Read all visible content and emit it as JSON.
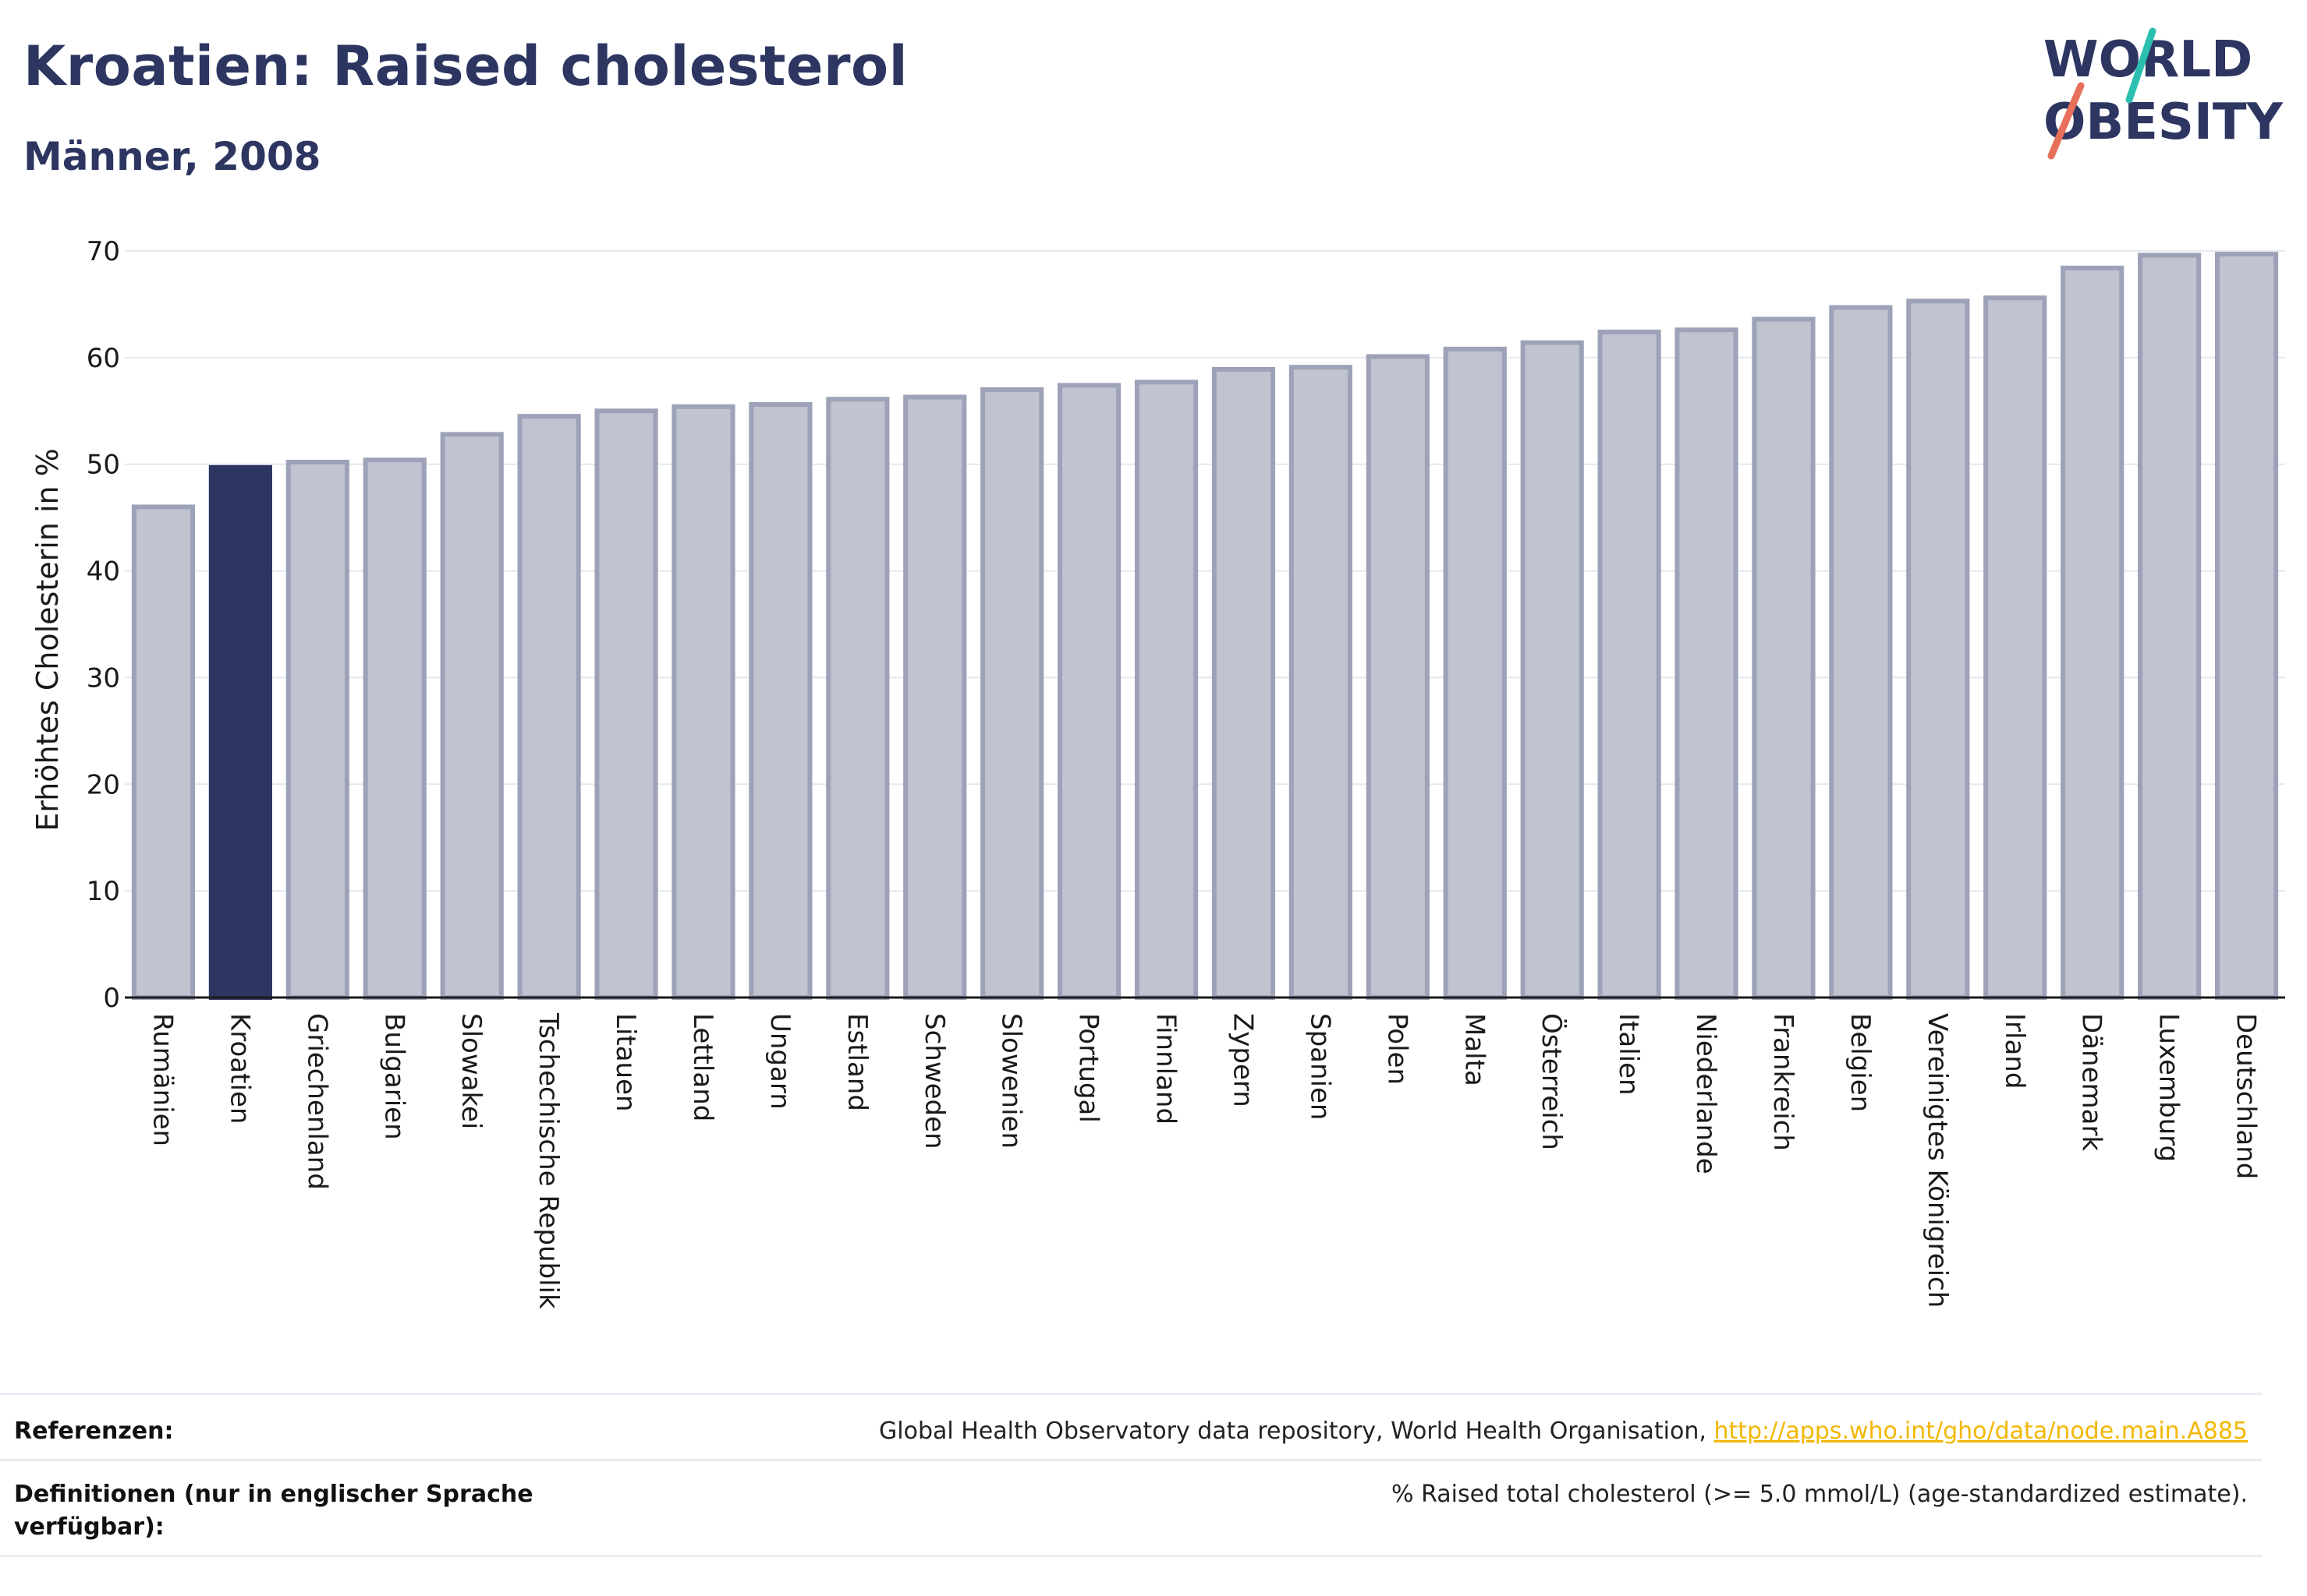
{
  "header": {
    "title": "Kroatien: Raised cholesterol",
    "subtitle": "Männer, 2008"
  },
  "logo": {
    "line1": "WORLD",
    "line2": "OBESITY",
    "accent_colors": [
      "#2bbfb0",
      "#e8705a"
    ],
    "text_color": "#2d3561"
  },
  "chart_data": {
    "type": "bar",
    "ylabel": "Erhöhtes Cholesterin in %",
    "ylim": [
      0,
      70
    ],
    "yticks": [
      0,
      10,
      20,
      30,
      40,
      50,
      60,
      70
    ],
    "grid": true,
    "highlight": "Kroatien",
    "colors": {
      "bar": "#c0c3d0",
      "bar_border": "#9da2b8",
      "highlight": "#2d3561"
    },
    "categories": [
      "Rumänien",
      "Kroatien",
      "Griechenland",
      "Bulgarien",
      "Slowakei",
      "Tschechische Republik",
      "Litauen",
      "Lettland",
      "Ungarn",
      "Estland",
      "Schweden",
      "Slowenien",
      "Portugal",
      "Finnland",
      "Zypern",
      "Spanien",
      "Polen",
      "Malta",
      "Österreich",
      "Italien",
      "Niederlande",
      "Frankreich",
      "Belgien",
      "Vereinigtes Königreich",
      "Irland",
      "Dänemark",
      "Luxemburg",
      "Deutschland"
    ],
    "values": [
      46.0,
      49.7,
      50.2,
      50.4,
      52.8,
      54.5,
      55.0,
      55.4,
      55.6,
      56.1,
      56.3,
      57.0,
      57.4,
      57.7,
      58.9,
      59.1,
      60.1,
      60.8,
      61.4,
      62.4,
      62.6,
      63.6,
      64.7,
      65.3,
      65.6,
      68.4,
      69.6,
      69.7
    ]
  },
  "footer": {
    "references_label": "Referenzen:",
    "references_text": "Global Health Observatory data repository, World Health Organisation, ",
    "references_link": "http://apps.who.int/gho/data/node.main.A885",
    "definitions_label": "Definitionen (nur in englischer Sprache verfügbar):",
    "definitions_text": "% Raised total cholesterol (>= 5.0 mmol/L) (age-standardized estimate)."
  }
}
